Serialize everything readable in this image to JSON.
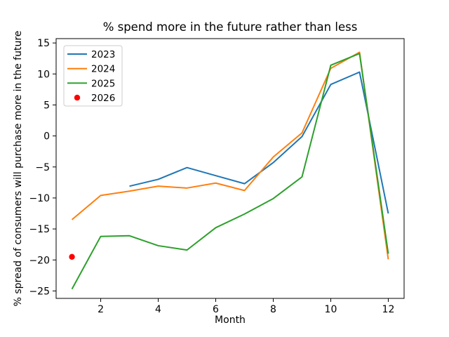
{
  "chart_data": {
    "type": "line",
    "title": "% spend more in the future rather than less",
    "xlabel": "Month",
    "ylabel": "% spread of consumers will purchase more in the future",
    "xlim": [
      0.45,
      12.55
    ],
    "ylim": [
      -26.2,
      15.7
    ],
    "x_ticks": [
      2,
      4,
      6,
      8,
      10,
      12
    ],
    "y_ticks": [
      15,
      10,
      5,
      0,
      -5,
      -10,
      -15,
      -20,
      -25
    ],
    "grid": false,
    "legend_position": "upper-left",
    "background_color": "#ffffff",
    "series": [
      {
        "name": "2023",
        "type": "line",
        "color": "#1f77b4",
        "x": [
          3,
          4,
          5,
          6,
          7,
          8,
          9,
          10,
          11,
          12
        ],
        "y": [
          -8.1,
          -7.0,
          -5.1,
          -6.4,
          -7.7,
          -4.3,
          -0.1,
          8.3,
          10.3,
          -12.5
        ]
      },
      {
        "name": "2024",
        "type": "line",
        "color": "#ff7f0e",
        "x": [
          1,
          2,
          3,
          4,
          5,
          6,
          7,
          8,
          9,
          10,
          11,
          12
        ],
        "y": [
          -13.5,
          -9.6,
          -8.9,
          -8.1,
          -8.4,
          -7.6,
          -8.8,
          -3.4,
          0.5,
          10.9,
          13.5,
          -19.9
        ]
      },
      {
        "name": "2025",
        "type": "line",
        "color": "#2ca02c",
        "x": [
          1,
          2,
          3,
          4,
          5,
          6,
          7,
          8,
          9,
          10,
          11,
          12
        ],
        "y": [
          -24.7,
          -16.2,
          -16.1,
          -17.7,
          -18.4,
          -14.8,
          -12.6,
          -10.1,
          -6.6,
          11.4,
          13.3,
          -19.0
        ]
      },
      {
        "name": "2026",
        "type": "scatter",
        "color": "#ff0000",
        "x": [
          1
        ],
        "y": [
          -19.5
        ]
      }
    ]
  }
}
